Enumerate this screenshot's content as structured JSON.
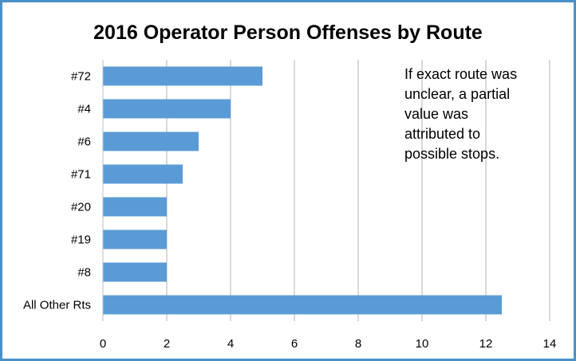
{
  "chart_data": {
    "type": "bar",
    "orientation": "horizontal",
    "title": "2016 Operator Person Offenses by Route",
    "categories": [
      "#72",
      "#4",
      "#6",
      "#71",
      "#20",
      "#19",
      "#8",
      "All Other Rts"
    ],
    "values": [
      5,
      4,
      3,
      2.5,
      2,
      2,
      2,
      12.5
    ],
    "xlim": [
      0,
      14
    ],
    "xticks": [
      0,
      2,
      4,
      6,
      8,
      10,
      12,
      14
    ],
    "xticks_labels": [
      "0",
      "2",
      "4",
      "6",
      "8",
      "10",
      "12",
      "14"
    ],
    "grid": true,
    "bar_color": "#5b9bd5",
    "gridline_color": "#d9d9d9",
    "border_color": "#4a90c8",
    "annotation": [
      "If exact route was",
      "unclear, a partial",
      "value was",
      "attributed to",
      "possible stops."
    ]
  }
}
